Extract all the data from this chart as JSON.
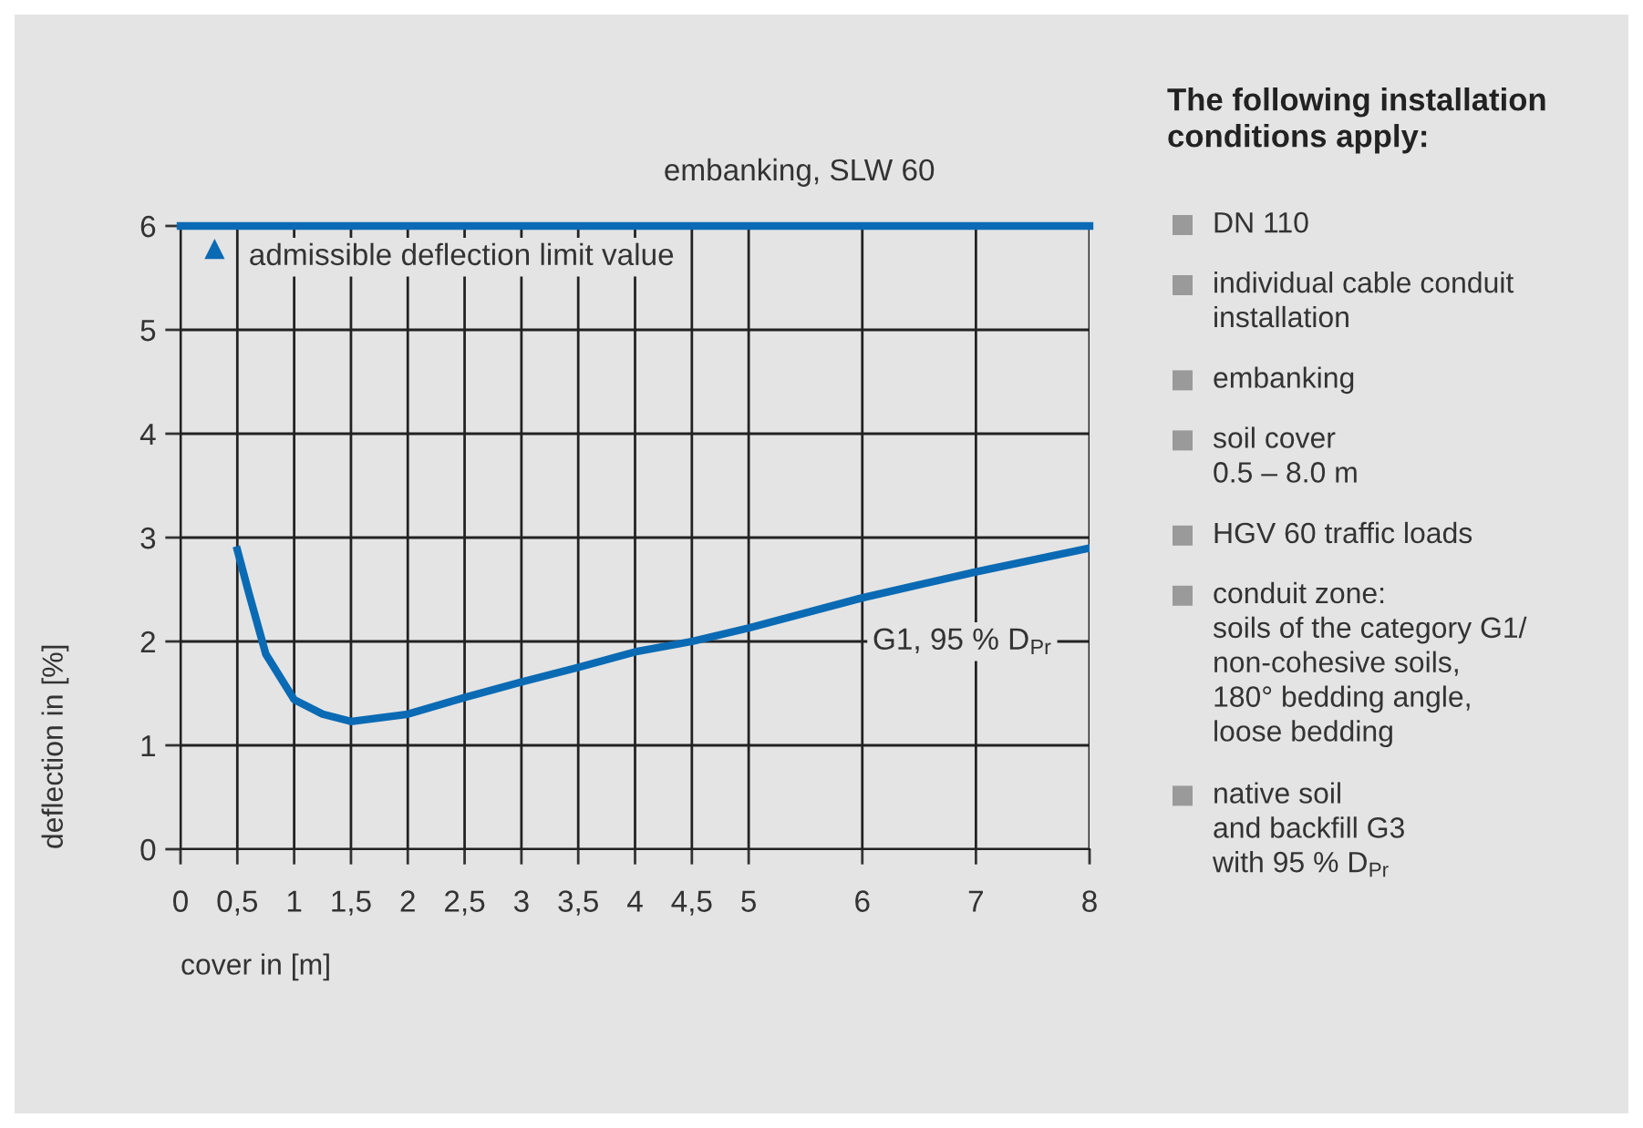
{
  "chart_data": {
    "type": "line",
    "title": "embanking, SLW 60",
    "xlabel": "cover in [m]",
    "ylabel": "deflection in [%]",
    "x": [
      0.5,
      0.6,
      0.75,
      1.0,
      1.25,
      1.5,
      2.0,
      2.5,
      3.0,
      3.5,
      4.0,
      4.5,
      5.0,
      6.0,
      7.0,
      8.0
    ],
    "series": [
      {
        "name": "G1, 95 % D$_{Pr}$",
        "color": "#0a6ab4",
        "values": [
          2.88,
          2.47,
          1.88,
          1.44,
          1.3,
          1.23,
          1.3,
          1.46,
          1.61,
          1.75,
          1.9,
          2.0,
          2.13,
          2.42,
          2.67,
          2.9
        ]
      }
    ],
    "xlim": [
      0,
      8
    ],
    "xticks": [
      0,
      {
        "value": 0.5,
        "label": "0,5"
      },
      1,
      {
        "value": 1.5,
        "label": "1,5"
      },
      2,
      {
        "value": 2.5,
        "label": "2,5"
      },
      3,
      {
        "value": 3.5,
        "label": "3,5"
      },
      4,
      {
        "value": 4.5,
        "label": "4,5"
      },
      5,
      6,
      7,
      8
    ],
    "ylim": [
      0,
      6
    ],
    "yticks": [
      0,
      1,
      2,
      3,
      4,
      5,
      6
    ],
    "grid": true,
    "marker": "none",
    "line_style": "solid",
    "ref_lines": [
      {
        "axis": "y",
        "value": 6,
        "label": "admissible deflection limit value",
        "color": "#0a6ab4"
      }
    ],
    "annotations": [
      "The following installation\nconditions apply:",
      "DN 110",
      "individual cable conduit\ninstallation",
      "embanking",
      "soil cover\n0.5 – 8.0 m",
      "HGV 60 traffic loads",
      "conduit zone:\nsoils of the category G1/\nnon-cohesive soils,\n180° bedding angle,\nloose bedding",
      "native soil\nand backfill G3\nwith 95 % D$_{Pr}$"
    ]
  }
}
